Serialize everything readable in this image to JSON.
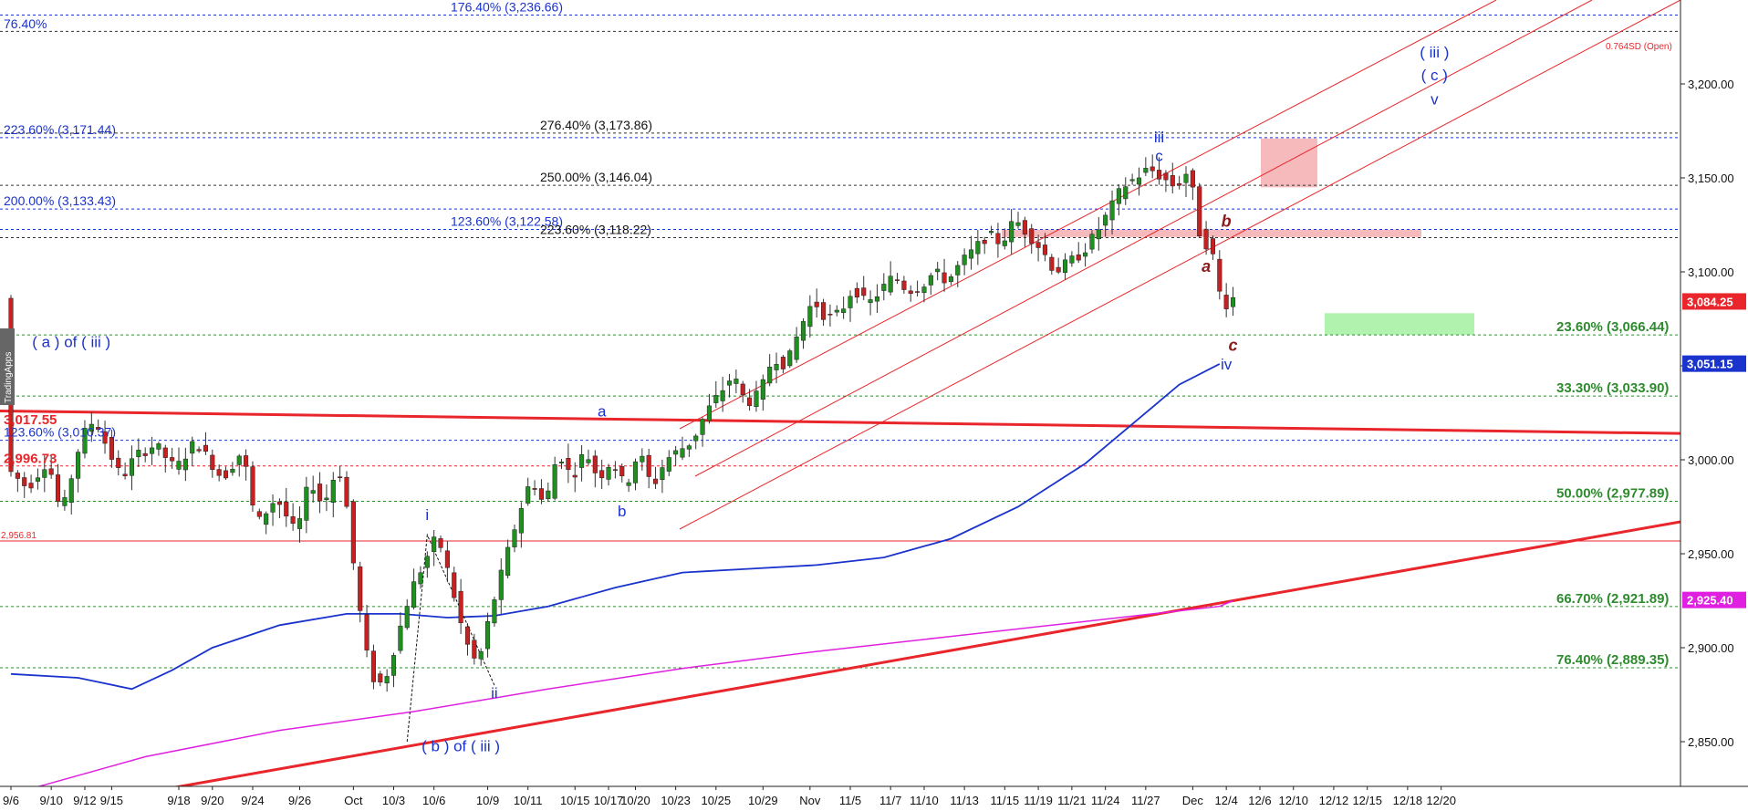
{
  "chart_data": {
    "type": "candlestick",
    "watermark": "TradingApps",
    "price_range": [
      2830,
      3250
    ],
    "time_range": [
      0,
      187
    ],
    "y_axis": {
      "ticks": [
        2850,
        2900,
        2950,
        3000,
        3050,
        3100,
        3150,
        3200
      ],
      "tick_labels": [
        "2,850.00",
        "2,900.00",
        "2,950.00",
        "3,000.00",
        "3,050.00",
        "3,100.00",
        "3,150.00",
        "3,200.00"
      ]
    },
    "x_axis": {
      "ticks": [
        {
          "t": 0,
          "label": "9/6"
        },
        {
          "t": 6,
          "label": "9/10"
        },
        {
          "t": 11,
          "label": "9/12"
        },
        {
          "t": 15,
          "label": "9/15"
        },
        {
          "t": 25,
          "label": "9/18"
        },
        {
          "t": 30,
          "label": "9/20"
        },
        {
          "t": 36,
          "label": "9/24"
        },
        {
          "t": 43,
          "label": "9/26"
        },
        {
          "t": 51,
          "label": "Oct"
        },
        {
          "t": 57,
          "label": "10/3"
        },
        {
          "t": 63,
          "label": "10/6"
        },
        {
          "t": 71,
          "label": "10/9"
        },
        {
          "t": 77,
          "label": "10/11"
        },
        {
          "t": 84,
          "label": "10/15"
        },
        {
          "t": 89,
          "label": "10/17"
        },
        {
          "t": 93,
          "label": "10/20"
        },
        {
          "t": 99,
          "label": "10/23"
        },
        {
          "t": 105,
          "label": "10/25"
        },
        {
          "t": 112,
          "label": "10/29"
        },
        {
          "t": 119,
          "label": "Nov"
        },
        {
          "t": 125,
          "label": "11/5"
        },
        {
          "t": 131,
          "label": "11/7"
        },
        {
          "t": 136,
          "label": "11/10"
        },
        {
          "t": 142,
          "label": "11/13"
        },
        {
          "t": 148,
          "label": "11/15"
        },
        {
          "t": 153,
          "label": "11/19"
        },
        {
          "t": 158,
          "label": "11/21"
        },
        {
          "t": 163,
          "label": "11/24"
        },
        {
          "t": 169,
          "label": "11/27"
        },
        {
          "t": 176,
          "label": "Dec"
        },
        {
          "t": 181,
          "label": "12/4"
        },
        {
          "t": 186,
          "label": "12/6"
        },
        {
          "t": 191,
          "label": "12/10"
        },
        {
          "t": 197,
          "label": "12/12"
        },
        {
          "t": 202,
          "label": "12/15"
        },
        {
          "t": 208,
          "label": "12/18"
        },
        {
          "t": 213,
          "label": "12/20"
        }
      ]
    },
    "price_path": [
      [
        0,
        2995
      ],
      [
        3,
        2985
      ],
      [
        6,
        3000
      ],
      [
        8,
        2970
      ],
      [
        11,
        3012
      ],
      [
        13,
        3022
      ],
      [
        15,
        3005
      ],
      [
        17,
        2990
      ],
      [
        19,
        3002
      ],
      [
        22,
        3008
      ],
      [
        25,
        2995
      ],
      [
        28,
        3010
      ],
      [
        30,
        3000
      ],
      [
        32,
        2990
      ],
      [
        35,
        3005
      ],
      [
        37,
        2965
      ],
      [
        40,
        2980
      ],
      [
        43,
        2960
      ],
      [
        45,
        2990
      ],
      [
        47,
        2975
      ],
      [
        49,
        2995
      ],
      [
        50,
        2990
      ],
      [
        52,
        2930
      ],
      [
        54,
        2885
      ],
      [
        56,
        2880
      ],
      [
        58,
        2905
      ],
      [
        60,
        2930
      ],
      [
        62,
        2945
      ],
      [
        64,
        2960
      ],
      [
        66,
        2935
      ],
      [
        68,
        2905
      ],
      [
        70,
        2890
      ],
      [
        72,
        2920
      ],
      [
        74,
        2945
      ],
      [
        76,
        2970
      ],
      [
        78,
        2990
      ],
      [
        80,
        2975
      ],
      [
        82,
        3005
      ],
      [
        84,
        2990
      ],
      [
        86,
        3005
      ],
      [
        88,
        2990
      ],
      [
        90,
        3000
      ],
      [
        92,
        2985
      ],
      [
        94,
        3005
      ],
      [
        96,
        2985
      ],
      [
        98,
        3000
      ],
      [
        100,
        3005
      ],
      [
        102,
        3010
      ],
      [
        104,
        3025
      ],
      [
        106,
        3035
      ],
      [
        108,
        3045
      ],
      [
        110,
        3030
      ],
      [
        112,
        3035
      ],
      [
        114,
        3055
      ],
      [
        116,
        3050
      ],
      [
        118,
        3070
      ],
      [
        120,
        3085
      ],
      [
        122,
        3075
      ],
      [
        124,
        3078
      ],
      [
        126,
        3092
      ],
      [
        128,
        3082
      ],
      [
        130,
        3090
      ],
      [
        132,
        3098
      ],
      [
        134,
        3090
      ],
      [
        136,
        3092
      ],
      [
        138,
        3100
      ],
      [
        140,
        3095
      ],
      [
        142,
        3105
      ],
      [
        144,
        3112
      ],
      [
        146,
        3120
      ],
      [
        148,
        3115
      ],
      [
        150,
        3128
      ],
      [
        152,
        3120
      ],
      [
        154,
        3112
      ],
      [
        156,
        3100
      ],
      [
        158,
        3105
      ],
      [
        160,
        3110
      ],
      [
        162,
        3120
      ],
      [
        164,
        3132
      ],
      [
        166,
        3145
      ],
      [
        168,
        3150
      ],
      [
        170,
        3155
      ],
      [
        172,
        3150
      ],
      [
        174,
        3145
      ],
      [
        176,
        3155
      ],
      [
        177,
        3130
      ],
      [
        178,
        3112
      ],
      [
        179,
        3118
      ],
      [
        180,
        3098
      ],
      [
        181,
        3080
      ],
      [
        182,
        3086
      ]
    ],
    "moving_average_blue": [
      [
        0,
        2886
      ],
      [
        10,
        2884
      ],
      [
        18,
        2878
      ],
      [
        24,
        2888
      ],
      [
        30,
        2900
      ],
      [
        40,
        2912
      ],
      [
        50,
        2918
      ],
      [
        58,
        2918
      ],
      [
        65,
        2916
      ],
      [
        72,
        2917
      ],
      [
        80,
        2922
      ],
      [
        90,
        2932
      ],
      [
        100,
        2940
      ],
      [
        110,
        2942
      ],
      [
        120,
        2944
      ],
      [
        130,
        2948
      ],
      [
        140,
        2958
      ],
      [
        150,
        2975
      ],
      [
        160,
        2998
      ],
      [
        168,
        3022
      ],
      [
        174,
        3040
      ],
      [
        180,
        3051
      ]
    ],
    "moving_average_magenta": [
      [
        0,
        2822
      ],
      [
        20,
        2842
      ],
      [
        40,
        2856
      ],
      [
        60,
        2866
      ],
      [
        80,
        2878
      ],
      [
        100,
        2889
      ],
      [
        120,
        2898
      ],
      [
        140,
        2906
      ],
      [
        160,
        2914
      ],
      [
        170,
        2918
      ],
      [
        180,
        2922
      ],
      [
        182,
        2925
      ]
    ],
    "fib_levels_green": [
      {
        "price": 3066.44,
        "label": "23.60% (3,066.44)"
      },
      {
        "price": 3033.9,
        "label": "33.30% (3,033.90)"
      },
      {
        "price": 2977.89,
        "label": "50.00% (2,977.89)"
      },
      {
        "price": 2921.89,
        "label": "66.70% (2,921.89)"
      },
      {
        "price": 2889.35,
        "label": "76.40% (2,889.35)"
      }
    ],
    "fib_levels_blue": [
      {
        "price": 3236.66,
        "label": "176.40% (3,236.66)"
      },
      {
        "price": 3171.44,
        "label": "223.60% (3,171.44)"
      },
      {
        "price": 3133.43,
        "label": "200.00% (3,133.43)"
      },
      {
        "price": 3122.58,
        "label": "123.60% (3,122.58)"
      },
      {
        "price": 3010.37,
        "label": "123.60% (3,010.37)"
      }
    ],
    "fib_levels_black": [
      {
        "price": 3173.86,
        "label": "276.40% (3,173.86)"
      },
      {
        "price": 3146.04,
        "label": "250.00% (3,146.04)"
      },
      {
        "price": 3118.22,
        "label": "223.60% (3,118.22)"
      }
    ],
    "top_left_label": "76.40%",
    "red_levels": [
      {
        "price": 3017.55,
        "label": "3,017.55"
      },
      {
        "price": 2996.73,
        "label": "2,996.73"
      },
      {
        "price": 2956.81,
        "label": "2,956.81"
      }
    ],
    "sd_label": "0.764SD (Open)",
    "price_tags": [
      {
        "price": 3084.25,
        "label": "3,084.25",
        "color": "#e8262b"
      },
      {
        "price": 3051.15,
        "label": "3,051.15",
        "color": "#1a33cc"
      },
      {
        "price": 2925.4,
        "label": "2,925.40",
        "color": "#e020e0"
      }
    ],
    "wave_labels": [
      {
        "t": 9,
        "price": 3060,
        "text": "( a ) of ( iii )",
        "color": "#1a33cc",
        "size": 17
      },
      {
        "t": 67,
        "price": 2845,
        "text": "( b ) of ( iii )",
        "color": "#1a33cc",
        "size": 17
      },
      {
        "t": 62,
        "price": 2968,
        "text": "i",
        "color": "#1a33cc",
        "size": 17
      },
      {
        "t": 72,
        "price": 2873,
        "text": "ii",
        "color": "#1a33cc",
        "size": 17
      },
      {
        "t": 88,
        "price": 3023,
        "text": "a",
        "color": "#1a33cc",
        "size": 17
      },
      {
        "t": 91,
        "price": 2970,
        "text": "b",
        "color": "#1a33cc",
        "size": 17
      },
      {
        "t": 171,
        "price": 3169,
        "text": "iii",
        "color": "#1a33cc",
        "size": 17
      },
      {
        "t": 171,
        "price": 3159,
        "text": "c",
        "color": "#1a33cc",
        "size": 17
      },
      {
        "t": 181,
        "price": 3048,
        "text": "iv",
        "color": "#1a33cc",
        "size": 17
      },
      {
        "t": 212,
        "price": 3214,
        "text": "( iii )",
        "color": "#1a33cc",
        "size": 17
      },
      {
        "t": 212,
        "price": 3202,
        "text": "( c )",
        "color": "#1a33cc",
        "size": 17
      },
      {
        "t": 212,
        "price": 3189,
        "text": "v",
        "color": "#1a33cc",
        "size": 17
      },
      {
        "t": 178,
        "price": 3100,
        "text": "a",
        "color": "#8b1a1a",
        "size": 18
      },
      {
        "t": 181,
        "price": 3124,
        "text": "b",
        "color": "#8b1a1a",
        "size": 18
      },
      {
        "t": 182,
        "price": 3058,
        "text": "c",
        "color": "#8b1a1a",
        "size": 18
      }
    ]
  }
}
